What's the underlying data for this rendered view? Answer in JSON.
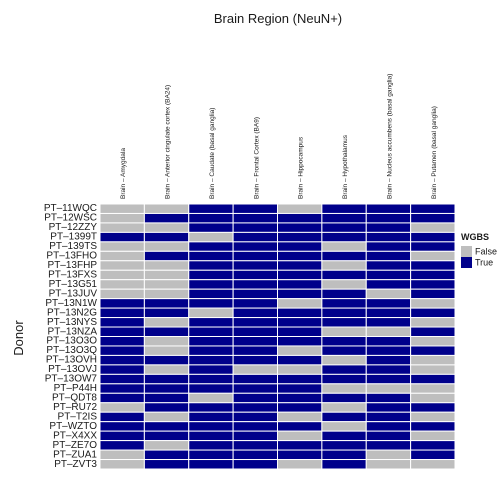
{
  "chart_data": {
    "type": "heatmap",
    "title": "Brain Region (NeuN+)",
    "ylabel": "Donor",
    "columns": [
      "Brain – Amygdala",
      "Brain – Anterior cingulate cortex (BA24)",
      "Brain – Caudate (basal ganglia)",
      "Brain – Frontal Cortex (BA9)",
      "Brain – Hippocampus",
      "Brain – Hypothalamus",
      "Brain – Nucleus accumbens (basal ganglia)",
      "Brain – Putamen (basal ganglia)"
    ],
    "rows": [
      "PT–11WQC",
      "PT–12WSC",
      "PT–12ZZY",
      "PT–1399T",
      "PT–139TS",
      "PT–13FHO",
      "PT–13FHP",
      "PT–13FXS",
      "PT–13G51",
      "PT–13JUV",
      "PT–13N1W",
      "PT–13N2G",
      "PT–13NYS",
      "PT–13NZA",
      "PT–13O3O",
      "PT–13O3Q",
      "PT–13OVH",
      "PT–13OVJ",
      "PT–13OW7",
      "PT–P44H",
      "PT–QDT8",
      "PT–RU72",
      "PT–T2IS",
      "PT–WZTO",
      "PT–X4XX",
      "PT–ZE7O",
      "PT–ZUA1",
      "PT–ZVT3"
    ],
    "values": [
      [
        0,
        0,
        1,
        1,
        0,
        1,
        1,
        1
      ],
      [
        0,
        1,
        1,
        1,
        1,
        1,
        1,
        1
      ],
      [
        0,
        0,
        1,
        1,
        1,
        1,
        1,
        0
      ],
      [
        1,
        1,
        0,
        1,
        1,
        1,
        1,
        1
      ],
      [
        0,
        0,
        1,
        1,
        1,
        0,
        1,
        1
      ],
      [
        0,
        1,
        1,
        1,
        1,
        1,
        1,
        0
      ],
      [
        0,
        0,
        1,
        1,
        1,
        0,
        1,
        1
      ],
      [
        0,
        0,
        1,
        1,
        1,
        1,
        1,
        1
      ],
      [
        0,
        0,
        1,
        1,
        1,
        0,
        1,
        1
      ],
      [
        0,
        0,
        1,
        1,
        1,
        1,
        0,
        1
      ],
      [
        1,
        1,
        1,
        1,
        0,
        1,
        1,
        0
      ],
      [
        1,
        1,
        0,
        1,
        1,
        1,
        1,
        1
      ],
      [
        1,
        0,
        1,
        1,
        1,
        1,
        1,
        0
      ],
      [
        1,
        1,
        1,
        1,
        1,
        0,
        0,
        1
      ],
      [
        1,
        0,
        1,
        1,
        1,
        1,
        1,
        0
      ],
      [
        1,
        0,
        1,
        1,
        0,
        1,
        1,
        1
      ],
      [
        1,
        1,
        1,
        1,
        1,
        0,
        1,
        0
      ],
      [
        1,
        0,
        1,
        0,
        0,
        1,
        1,
        0
      ],
      [
        1,
        1,
        1,
        1,
        1,
        1,
        1,
        1
      ],
      [
        1,
        1,
        1,
        1,
        1,
        0,
        0,
        0
      ],
      [
        1,
        1,
        0,
        1,
        1,
        1,
        1,
        0
      ],
      [
        0,
        1,
        1,
        1,
        1,
        0,
        1,
        1
      ],
      [
        1,
        0,
        1,
        1,
        0,
        1,
        1,
        0
      ],
      [
        1,
        1,
        1,
        1,
        1,
        0,
        1,
        1
      ],
      [
        1,
        1,
        1,
        1,
        0,
        1,
        1,
        0
      ],
      [
        1,
        0,
        1,
        1,
        1,
        1,
        1,
        1
      ],
      [
        0,
        1,
        1,
        1,
        1,
        1,
        0,
        1
      ],
      [
        0,
        1,
        1,
        1,
        0,
        1,
        0,
        0
      ]
    ],
    "legend": {
      "title": "WGBS",
      "placement": "right",
      "items": [
        {
          "label": "False",
          "color": "#bebebe"
        },
        {
          "label": "True",
          "color": "#00008b"
        }
      ]
    },
    "colors": {
      "false": "#bebebe",
      "true": "#00008b"
    },
    "grid": false
  }
}
